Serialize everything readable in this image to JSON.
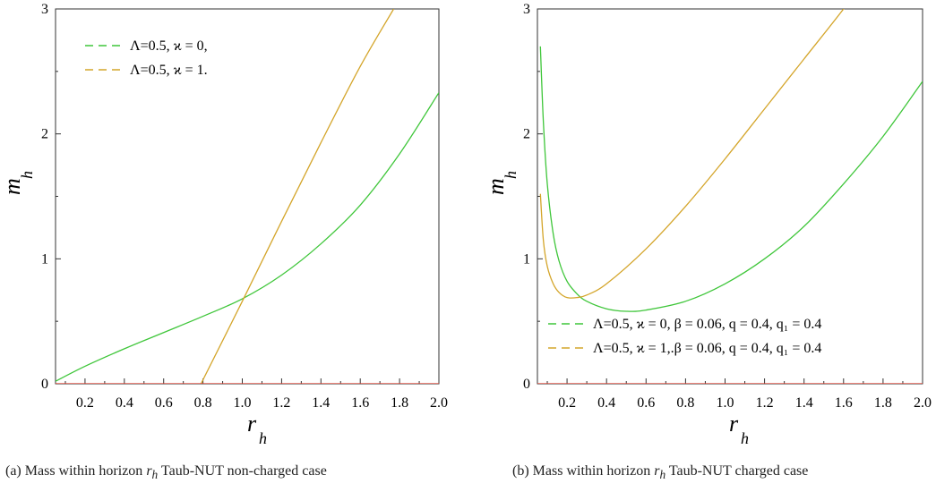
{
  "chart_data": [
    {
      "type": "line",
      "caption": "(a) Mass within horizon r_h Taub-NUT non-charged case",
      "xlabel": "r",
      "xlabel_sub": "h",
      "ylabel": "m",
      "ylabel_sub": "h",
      "xlim": [
        0.05,
        2.0
      ],
      "ylim": [
        0,
        3
      ],
      "xticks": [
        "0.2",
        "0.4",
        "0.6",
        "0.8",
        "1.0",
        "1.2",
        "1.4",
        "1.6",
        "1.8",
        "2.0"
      ],
      "xtick_values": [
        0.2,
        0.4,
        0.6,
        0.8,
        1.0,
        1.2,
        1.4,
        1.6,
        1.8,
        2.0
      ],
      "yticks": [
        "0",
        "1",
        "2",
        "3"
      ],
      "yticks_values": [
        0,
        1,
        2,
        3
      ],
      "legend": [
        "Λ=0.5,  ϰ = 0,",
        "Λ=0.5, ϰ = 1."
      ],
      "series": [
        {
          "name": "Λ=0.5,  ϰ = 0,",
          "color": "#3fc63a",
          "x": [
            0.05,
            0.2,
            0.4,
            0.6,
            0.8,
            1.0,
            1.2,
            1.4,
            1.6,
            1.8,
            2.0
          ],
          "y": [
            0.02,
            0.14,
            0.28,
            0.41,
            0.54,
            0.68,
            0.87,
            1.12,
            1.43,
            1.84,
            2.33
          ]
        },
        {
          "name": "Λ=0.5, ϰ = 1.",
          "color": "#d4a52a",
          "x": [
            0.79,
            1.0,
            1.2,
            1.4,
            1.6,
            1.77
          ],
          "y": [
            0,
            0.66,
            1.3,
            1.93,
            2.54,
            3.0
          ]
        },
        {
          "name": "",
          "color": "#e23a2a",
          "x": [
            0.05,
            2.0
          ],
          "y": [
            0,
            0
          ]
        }
      ]
    },
    {
      "type": "line",
      "caption": "(b) Mass within horizon r_h Taub-NUT charged case",
      "xlabel": "r",
      "xlabel_sub": "h",
      "ylabel": "m",
      "ylabel_sub": "h",
      "xlim": [
        0.05,
        2.0
      ],
      "ylim": [
        0,
        3
      ],
      "xticks": [
        "0.2",
        "0.4",
        "0.6",
        "0.8",
        "1.0",
        "1.2",
        "1.4",
        "1.6",
        "1.8",
        "2.0"
      ],
      "xtick_values": [
        0.2,
        0.4,
        0.6,
        0.8,
        1.0,
        1.2,
        1.4,
        1.6,
        1.8,
        2.0
      ],
      "yticks": [
        "0",
        "1",
        "2",
        "3"
      ],
      "yticks_values": [
        0,
        1,
        2,
        3
      ],
      "legend": [
        "Λ=0.5, ϰ = 0, β = 0.06, q = 0.4, q₁ = 0.4",
        "Λ=0.5,  ϰ = 1,.β = 0.06, q = 0.4, q₁ = 0.4"
      ],
      "series": [
        {
          "name": "Λ=0.5, ϰ = 0, β = 0.06, q = 0.4, q₁ = 0.4",
          "color": "#3fc63a",
          "x": [
            0.065,
            0.08,
            0.1,
            0.13,
            0.16,
            0.2,
            0.25,
            0.3,
            0.4,
            0.5,
            0.6,
            0.8,
            1.0,
            1.2,
            1.4,
            1.6,
            1.8,
            2.0
          ],
          "y": [
            2.7,
            2.1,
            1.6,
            1.2,
            0.98,
            0.82,
            0.72,
            0.66,
            0.6,
            0.58,
            0.59,
            0.66,
            0.8,
            1.0,
            1.26,
            1.6,
            1.98,
            2.42
          ]
        },
        {
          "name": "Λ=0.5,  ϰ = 1,.β = 0.06, q = 0.4, q₁ = 0.4",
          "color": "#d4a52a",
          "x": [
            0.065,
            0.08,
            0.1,
            0.13,
            0.16,
            0.2,
            0.25,
            0.3,
            0.4,
            0.6,
            0.8,
            1.0,
            1.2,
            1.4,
            1.6,
            1.75
          ],
          "y": [
            1.52,
            1.15,
            0.94,
            0.8,
            0.73,
            0.69,
            0.69,
            0.71,
            0.8,
            1.08,
            1.42,
            1.8,
            2.2,
            2.6,
            3.0,
            3.32
          ]
        },
        {
          "name": "",
          "color": "#e23a2a",
          "x": [
            0.05,
            2.0
          ],
          "y": [
            0,
            0
          ]
        }
      ]
    }
  ],
  "captions": {
    "a_prefix": "(a) Mass within horizon ",
    "a_var": "r",
    "a_sub": "h",
    "a_suffix": " Taub-NUT non-charged case",
    "b_prefix": "(b) Mass within horizon ",
    "b_var": "r",
    "b_sub": "h",
    "b_suffix": " Taub-NUT charged case"
  }
}
